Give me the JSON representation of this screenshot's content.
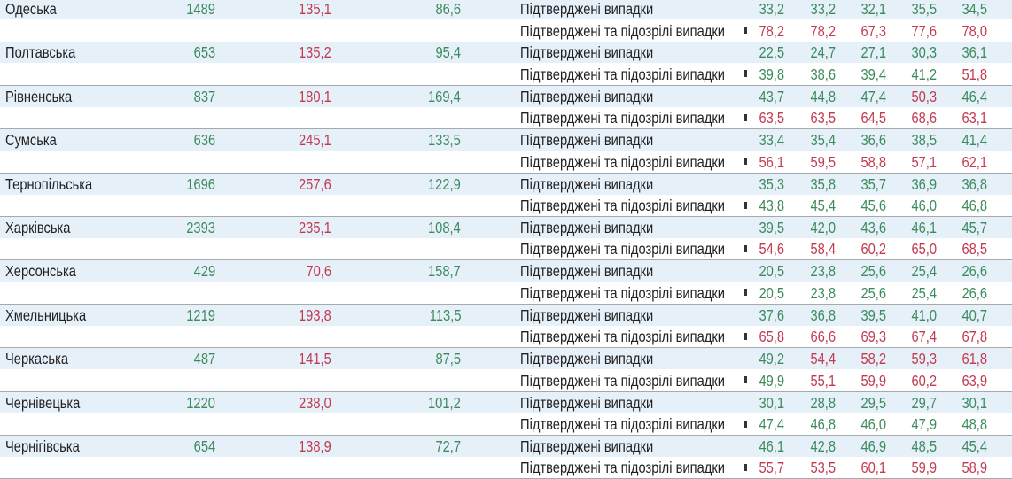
{
  "colors": {
    "green": "#3d8a5c",
    "red": "#c23a50",
    "row_highlight": "#e6f0f9",
    "separator": "#a7a9ad"
  },
  "labels": {
    "confirmed": "Підтверджені випадки",
    "confirmed_suspected": "Підтверджені та підозрілі випадки"
  },
  "regions": [
    {
      "name": "Одеська",
      "v1": "1489",
      "v1c": "g",
      "v2": "135,1",
      "v2c": "r",
      "v3": "86,6",
      "v3c": "g",
      "confirmed": [
        "33,2",
        "33,2",
        "32,1",
        "35,5",
        "34,5"
      ],
      "confirmed_colors": "ggggg",
      "suspected": [
        "78,2",
        "78,2",
        "67,3",
        "77,6",
        "78,0"
      ],
      "suspected_colors": "rrrrr"
    },
    {
      "name": "Полтавська",
      "v1": "653",
      "v1c": "g",
      "v2": "135,2",
      "v2c": "r",
      "v3": "95,4",
      "v3c": "g",
      "confirmed": [
        "22,5",
        "24,7",
        "27,1",
        "30,3",
        "36,1"
      ],
      "confirmed_colors": "ggggg",
      "suspected": [
        "39,8",
        "38,6",
        "39,4",
        "41,2",
        "51,8"
      ],
      "suspected_colors": "ggggr"
    },
    {
      "name": "Рівненська",
      "v1": "837",
      "v1c": "g",
      "v2": "180,1",
      "v2c": "r",
      "v3": "169,4",
      "v3c": "g",
      "confirmed": [
        "43,7",
        "44,8",
        "47,4",
        "50,3",
        "46,4"
      ],
      "confirmed_colors": "gggrg",
      "suspected": [
        "63,5",
        "63,5",
        "64,5",
        "68,6",
        "63,1"
      ],
      "suspected_colors": "rrrrr"
    },
    {
      "name": "Сумська",
      "v1": "636",
      "v1c": "g",
      "v2": "245,1",
      "v2c": "r",
      "v3": "133,5",
      "v3c": "g",
      "confirmed": [
        "33,4",
        "35,4",
        "36,6",
        "38,5",
        "41,4"
      ],
      "confirmed_colors": "ggggg",
      "suspected": [
        "56,1",
        "59,5",
        "58,8",
        "57,1",
        "62,1"
      ],
      "suspected_colors": "rrrrr"
    },
    {
      "name": "Тернопільська",
      "v1": "1696",
      "v1c": "g",
      "v2": "257,6",
      "v2c": "r",
      "v3": "122,9",
      "v3c": "g",
      "confirmed": [
        "35,3",
        "35,8",
        "35,7",
        "36,9",
        "36,8"
      ],
      "confirmed_colors": "ggggg",
      "suspected": [
        "43,8",
        "45,4",
        "45,6",
        "46,0",
        "46,8"
      ],
      "suspected_colors": "ggggg"
    },
    {
      "name": "Харківська",
      "v1": "2393",
      "v1c": "g",
      "v2": "235,1",
      "v2c": "r",
      "v3": "108,4",
      "v3c": "g",
      "confirmed": [
        "39,5",
        "42,0",
        "43,6",
        "46,1",
        "45,7"
      ],
      "confirmed_colors": "ggggg",
      "suspected": [
        "54,6",
        "58,4",
        "60,2",
        "65,0",
        "68,5"
      ],
      "suspected_colors": "rrrrr"
    },
    {
      "name": "Херсонська",
      "v1": "429",
      "v1c": "g",
      "v2": "70,6",
      "v2c": "r",
      "v3": "158,7",
      "v3c": "g",
      "confirmed": [
        "20,5",
        "23,8",
        "25,6",
        "25,4",
        "26,6"
      ],
      "confirmed_colors": "ggggg",
      "suspected": [
        "20,5",
        "23,8",
        "25,6",
        "25,4",
        "26,6"
      ],
      "suspected_colors": "ggggg"
    },
    {
      "name": "Хмельницька",
      "v1": "1219",
      "v1c": "g",
      "v2": "193,8",
      "v2c": "r",
      "v3": "113,5",
      "v3c": "g",
      "confirmed": [
        "37,6",
        "36,8",
        "39,5",
        "41,0",
        "40,7"
      ],
      "confirmed_colors": "ggggg",
      "suspected": [
        "65,8",
        "66,6",
        "69,3",
        "67,4",
        "67,8"
      ],
      "suspected_colors": "rrrrr"
    },
    {
      "name": "Черкаська",
      "v1": "487",
      "v1c": "g",
      "v2": "141,5",
      "v2c": "r",
      "v3": "87,5",
      "v3c": "g",
      "confirmed": [
        "49,2",
        "54,4",
        "58,2",
        "59,3",
        "61,8"
      ],
      "confirmed_colors": "grrrr",
      "suspected": [
        "49,9",
        "55,1",
        "59,9",
        "60,2",
        "63,9"
      ],
      "suspected_colors": "grrrr"
    },
    {
      "name": "Чернівецька",
      "v1": "1220",
      "v1c": "g",
      "v2": "238,0",
      "v2c": "r",
      "v3": "101,2",
      "v3c": "g",
      "confirmed": [
        "30,1",
        "28,8",
        "29,5",
        "29,7",
        "30,1"
      ],
      "confirmed_colors": "ggggg",
      "suspected": [
        "47,4",
        "46,8",
        "46,0",
        "47,9",
        "48,8"
      ],
      "suspected_colors": "ggggg"
    },
    {
      "name": "Чернігівська",
      "v1": "654",
      "v1c": "g",
      "v2": "138,9",
      "v2c": "r",
      "v3": "72,7",
      "v3c": "g",
      "confirmed": [
        "46,1",
        "42,8",
        "46,9",
        "48,5",
        "45,4"
      ],
      "confirmed_colors": "ggggg",
      "suspected": [
        "55,7",
        "53,5",
        "60,1",
        "59,9",
        "58,9"
      ],
      "suspected_colors": "rrrrr"
    }
  ]
}
